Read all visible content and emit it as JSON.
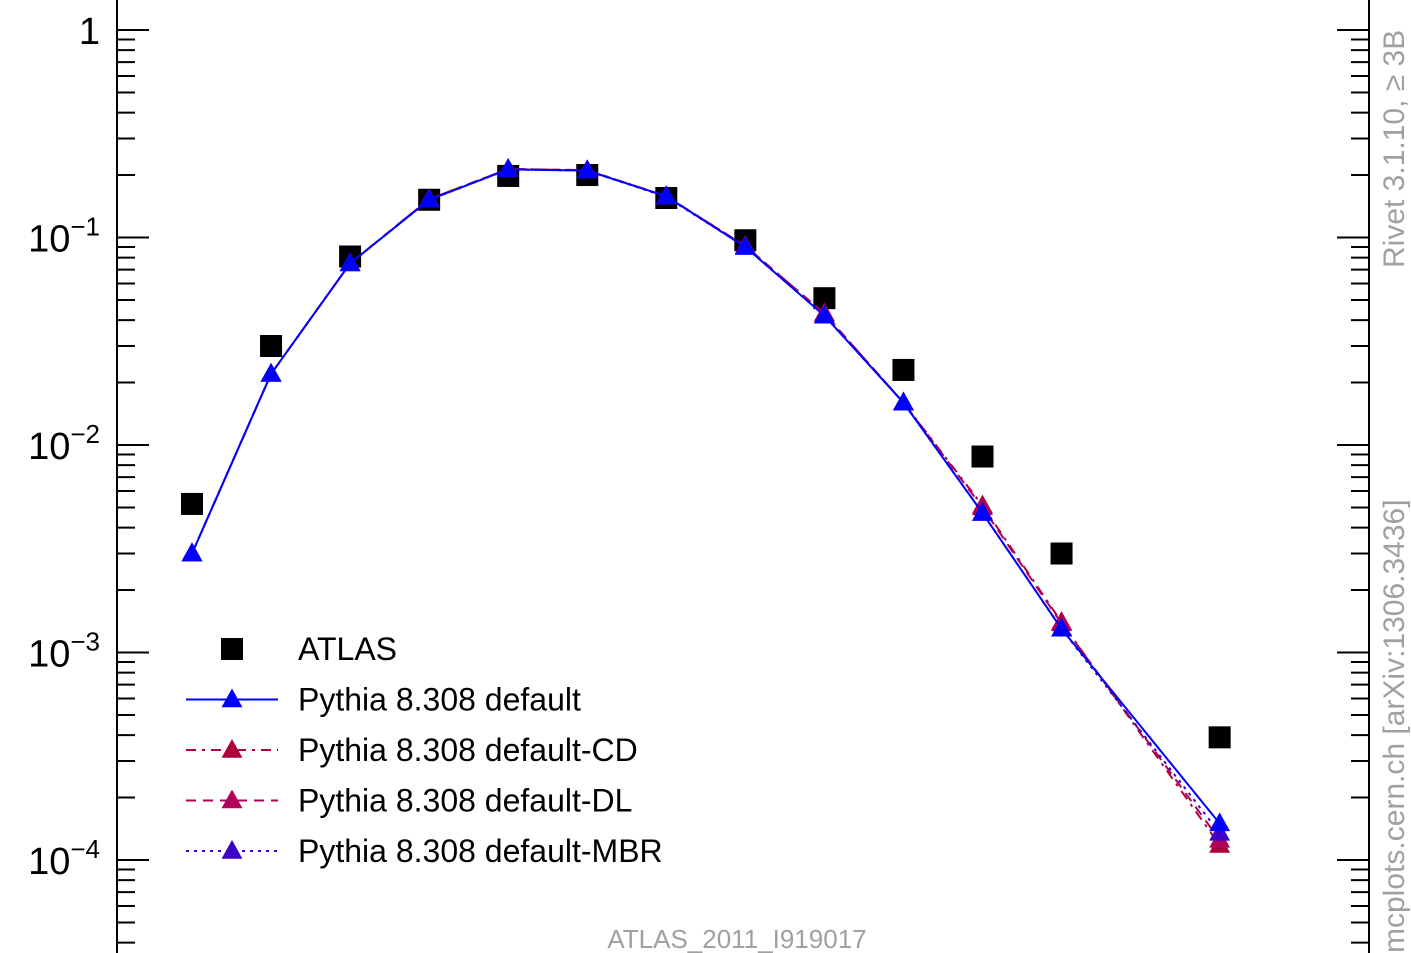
{
  "chart_data": {
    "type": "scatter",
    "y_scale": "log",
    "ylim": [
      4e-05,
      1.25
    ],
    "xlim": [
      0.5,
      14.1
    ],
    "categories": [
      1,
      2,
      3,
      4,
      5,
      6,
      7,
      8,
      9,
      10,
      11,
      12,
      13,
      14
    ],
    "y_ticks": [
      {
        "value": 1,
        "base": "1",
        "exp": ""
      },
      {
        "value": 0.1,
        "base": "10",
        "exp": "−1"
      },
      {
        "value": 0.01,
        "base": "10",
        "exp": "−2"
      },
      {
        "value": 0.001,
        "base": "10",
        "exp": "−3"
      },
      {
        "value": 0.0001,
        "base": "10",
        "exp": "−4"
      }
    ],
    "series": [
      {
        "name": "ATLAS",
        "style": "square",
        "color": "#000000",
        "dash": "",
        "x": [
          1,
          2,
          3,
          4,
          5,
          6,
          7,
          8,
          9,
          10,
          11,
          12,
          14
        ],
        "values": [
          0.0052,
          0.03,
          0.081,
          0.152,
          0.198,
          0.2,
          0.155,
          0.097,
          0.051,
          0.023,
          0.0088,
          0.003,
          0.00039
        ]
      },
      {
        "name": "Pythia 8.308 default",
        "style": "triangle",
        "color": "#0000ff",
        "dash": "",
        "x": [
          1,
          2,
          3,
          4,
          5,
          6,
          7,
          8,
          9,
          10,
          11,
          12,
          14
        ],
        "values": [
          0.003,
          0.022,
          0.075,
          0.152,
          0.213,
          0.21,
          0.158,
          0.09,
          0.042,
          0.016,
          0.0047,
          0.0013,
          0.00015
        ]
      },
      {
        "name": "Pythia 8.308 default-CD",
        "style": "triangle",
        "color": "#b0003c",
        "dash": "10 6 3 6",
        "x": [
          1,
          2,
          3,
          4,
          5,
          6,
          7,
          8,
          9,
          10,
          11,
          12,
          14
        ],
        "values": [
          0.003,
          0.022,
          0.075,
          0.153,
          0.214,
          0.211,
          0.158,
          0.091,
          0.043,
          0.016,
          0.0051,
          0.0014,
          0.000118
        ]
      },
      {
        "name": "Pythia 8.308 default-DL",
        "style": "triangle",
        "color": "#b0005a",
        "dash": "10 7",
        "x": [
          1,
          2,
          3,
          4,
          5,
          6,
          7,
          8,
          9,
          10,
          11,
          12,
          14
        ],
        "values": [
          0.003,
          0.022,
          0.075,
          0.153,
          0.214,
          0.211,
          0.158,
          0.091,
          0.043,
          0.016,
          0.005,
          0.00138,
          0.000125
        ]
      },
      {
        "name": "Pythia 8.308 default-MBR",
        "style": "triangle",
        "color": "#3c00c8",
        "dash": "3 5",
        "x": [
          1,
          2,
          3,
          4,
          5,
          6,
          7,
          8,
          9,
          10,
          11,
          12,
          14
        ],
        "values": [
          0.003,
          0.022,
          0.075,
          0.152,
          0.213,
          0.21,
          0.157,
          0.09,
          0.042,
          0.016,
          0.0047,
          0.0013,
          0.000135
        ]
      }
    ],
    "legend": {
      "position": "bottom-left"
    },
    "footer": "ATLAS_2011_I919017",
    "side_text_top": "Rivet 3.1.10, ≥ 3B",
    "side_text_bottom": "mcplots.cern.ch [arXiv:1306.3436]"
  }
}
